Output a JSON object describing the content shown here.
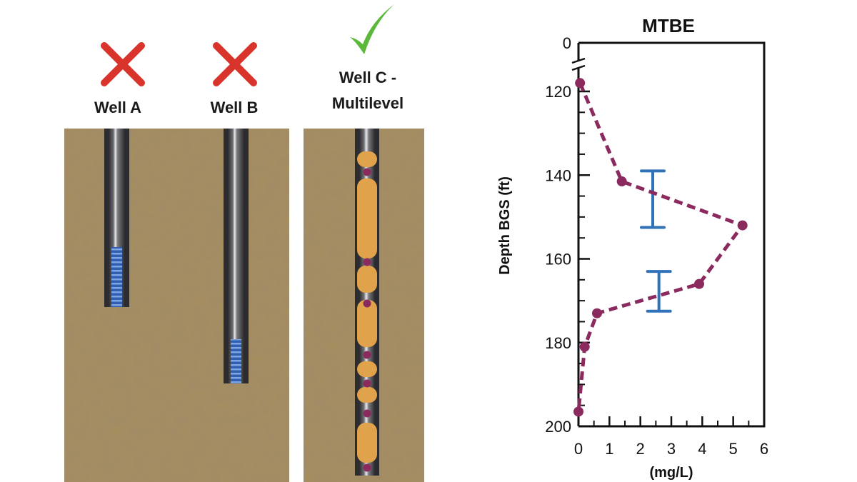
{
  "wells": [
    {
      "label": "Well A",
      "status": "rejected",
      "mark_icon": "red-x-icon",
      "mark_color": "#d9342b"
    },
    {
      "label": "Well B",
      "status": "rejected",
      "mark_icon": "red-x-icon",
      "mark_color": "#d9342b"
    },
    {
      "label_line1": "Well C -",
      "label_line2": "Multilevel",
      "status": "approved",
      "mark_icon": "green-check-icon",
      "mark_color": "#5cb83a"
    }
  ],
  "colors": {
    "soil": "#a68d5f",
    "casing": "#3b3b3f",
    "screen": "#3d6fc4",
    "packer": "#e0a24a",
    "port": "#8b2a5e",
    "profile_line": "#8b2a5e",
    "interval_bar": "#2f72b7"
  },
  "chart_data": {
    "type": "line",
    "title": "MTBE",
    "xlabel": "(mg/L)",
    "ylabel": "Depth BGS (ft)",
    "xlim": [
      0,
      6
    ],
    "x_ticks": [
      0,
      1,
      2,
      3,
      4,
      5,
      6
    ],
    "ylim": [
      200,
      0
    ],
    "y_axis_break": true,
    "y_ticks": [
      0,
      120,
      140,
      160,
      180,
      200
    ],
    "series": [
      {
        "style": "dashed-with-markers",
        "points": [
          {
            "x": 0.05,
            "y": 118
          },
          {
            "x": 1.4,
            "y": 141.5
          },
          {
            "x": 5.3,
            "y": 152
          },
          {
            "x": 3.9,
            "y": 166
          },
          {
            "x": 0.6,
            "y": 173
          },
          {
            "x": 0.2,
            "y": 181
          },
          {
            "x": 0.0,
            "y": 196.5
          }
        ]
      }
    ],
    "intervals": [
      {
        "x": 2.4,
        "y_top": 139,
        "y_bottom": 152.5
      },
      {
        "x": 2.6,
        "y_top": 163,
        "y_bottom": 172.5
      }
    ]
  }
}
